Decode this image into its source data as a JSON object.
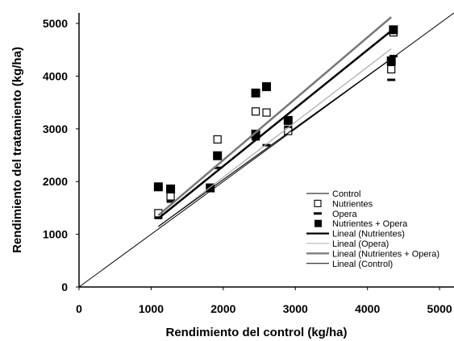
{
  "chart_data": {
    "type": "scatter",
    "title": "",
    "xlabel": "Rendimiento del control (kg/ha)",
    "ylabel": "Rendimiento del tratamiento (kg/ha)",
    "xlim": [
      0,
      5200
    ],
    "ylim": [
      0,
      5200
    ],
    "x_ticks": [
      0,
      1000,
      2000,
      3000,
      4000,
      5000
    ],
    "y_ticks": [
      0,
      1000,
      2000,
      3000,
      4000,
      5000
    ],
    "grid": false,
    "legend_position": "bottom-right",
    "legend": [
      {
        "label": "Control",
        "style": "line",
        "color": "#000000"
      },
      {
        "label": "Nutrientes",
        "style": "open-square",
        "color": "#000000"
      },
      {
        "label": "Opera",
        "style": "dash",
        "color": "#000000"
      },
      {
        "label": "Nutrientes + Opera",
        "style": "filled-square",
        "color": "#000000"
      },
      {
        "label": "Lineal (Nutrientes)",
        "style": "line",
        "color": "#000000"
      },
      {
        "label": "Lineal (Opera)",
        "style": "line",
        "color": "#aaaaaa"
      },
      {
        "label": "Lineal (Nutrientes + Opera)",
        "style": "line",
        "color": "#777777"
      },
      {
        "label": "Lineal (Control)",
        "style": "line",
        "color": "#000000"
      }
    ],
    "series": [
      {
        "name": "Control",
        "kind": "line",
        "color": "#000000",
        "points": [
          [
            0,
            0
          ],
          [
            5200,
            5200
          ]
        ]
      },
      {
        "name": "Nutrientes",
        "kind": "open-square",
        "color": "#000000",
        "points": [
          [
            1100,
            1400
          ],
          [
            1270,
            1720
          ],
          [
            1920,
            2800
          ],
          [
            2450,
            3330
          ],
          [
            2600,
            3310
          ],
          [
            2900,
            2960
          ],
          [
            4330,
            4130
          ],
          [
            4360,
            4830
          ]
        ]
      },
      {
        "name": "Opera",
        "kind": "dash",
        "color": "#000000",
        "points": [
          [
            1100,
            1310
          ],
          [
            1270,
            1620
          ],
          [
            1820,
            1870
          ],
          [
            1920,
            2260
          ],
          [
            2450,
            2800
          ],
          [
            2600,
            2690
          ],
          [
            2900,
            3040
          ],
          [
            4330,
            3930
          ],
          [
            4360,
            4380
          ]
        ]
      },
      {
        "name": "Nutrientes + Opera",
        "kind": "filled-square",
        "color": "#000000",
        "points": [
          [
            1100,
            1900
          ],
          [
            1270,
            1860
          ],
          [
            1820,
            1880
          ],
          [
            1920,
            2490
          ],
          [
            2450,
            3680
          ],
          [
            2450,
            2900
          ],
          [
            2600,
            3800
          ],
          [
            2900,
            3160
          ],
          [
            4330,
            4290
          ],
          [
            4360,
            4880
          ]
        ]
      },
      {
        "name": "Lineal (Nutrientes)",
        "kind": "line",
        "color": "#000000",
        "width": 2.5,
        "points": [
          [
            1100,
            1300
          ],
          [
            4330,
            4860
          ]
        ]
      },
      {
        "name": "Lineal (Opera)",
        "kind": "line",
        "color": "#aaaaaa",
        "width": 1.2,
        "points": [
          [
            1100,
            1140
          ],
          [
            4330,
            4520
          ]
        ]
      },
      {
        "name": "Lineal (Nutrientes + Opera)",
        "kind": "line",
        "color": "#777777",
        "width": 2.5,
        "points": [
          [
            1100,
            1360
          ],
          [
            4330,
            5120
          ]
        ]
      },
      {
        "name": "Lineal (Control)",
        "kind": "line",
        "color": "#000000",
        "width": 1.2,
        "points": [
          [
            1100,
            1150
          ],
          [
            4330,
            4330
          ]
        ]
      }
    ]
  }
}
